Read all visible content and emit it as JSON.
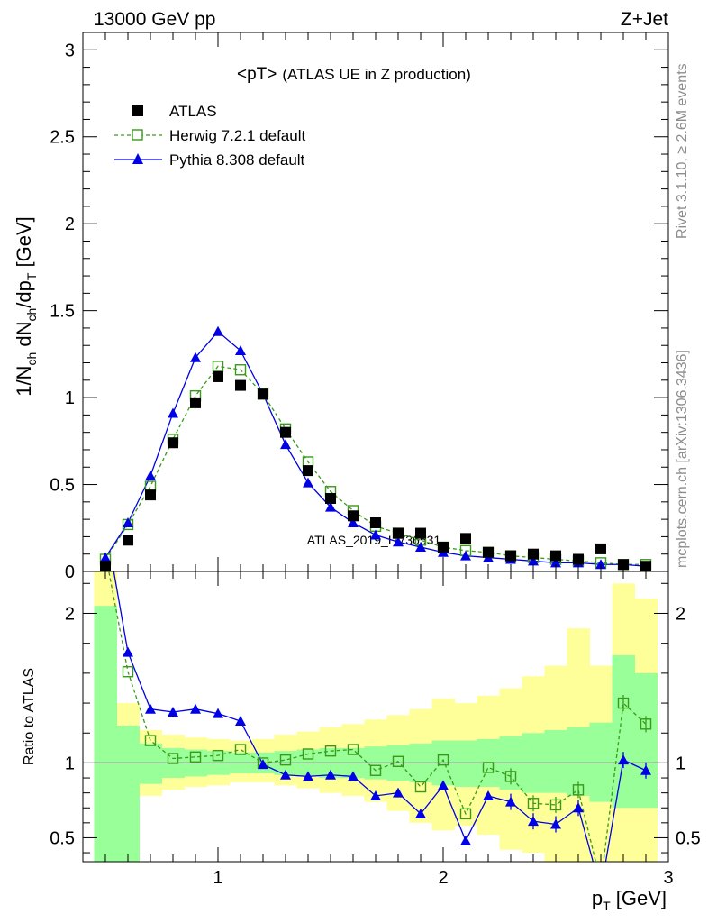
{
  "header": {
    "left": "13000 GeV pp",
    "right": "Z+Jet"
  },
  "side_labels": {
    "rivet": "Rivet 3.1.10, ≥ 2.6M events",
    "mcplots": "mcplots.cern.ch [arXiv:1306.3436]"
  },
  "watermark": "ATLAS_2019_I1736531",
  "chart_data": [
    {
      "type": "scatter",
      "panel": "main",
      "title": "<pT> (ATLAS UE in Z production)",
      "title_main": "<pT>",
      "title_sub": "(ATLAS UE in Z production)",
      "ylabel": "1/N_ch dN_ch/dp_T [GeV]",
      "ylim": [
        0,
        3.1
      ],
      "xlim": [
        0.4,
        3.0
      ],
      "yticks": [
        "0",
        "0.5",
        "1",
        "1.5",
        "2",
        "2.5",
        "3"
      ],
      "legend_placement": "top-left",
      "x": [
        0.5,
        0.6,
        0.7,
        0.8,
        0.9,
        1.0,
        1.1,
        1.2,
        1.3,
        1.4,
        1.5,
        1.6,
        1.7,
        1.8,
        1.9,
        2.0,
        2.1,
        2.2,
        2.3,
        2.4,
        2.5,
        2.6,
        2.7,
        2.8,
        2.9
      ],
      "series": [
        {
          "name": "ATLAS",
          "style": "black filled squares",
          "color": "#000000",
          "values": [
            0.03,
            0.18,
            0.44,
            0.74,
            0.97,
            1.12,
            1.07,
            1.02,
            0.8,
            0.58,
            0.42,
            0.32,
            0.28,
            0.22,
            0.22,
            0.14,
            0.19,
            0.11,
            0.09,
            0.1,
            0.09,
            0.07,
            0.13,
            0.04,
            0.03
          ]
        },
        {
          "name": "Herwig 7.2.1 default",
          "style": "green dashed open squares",
          "color": "#3a9a1a",
          "values": [
            0.07,
            0.27,
            0.49,
            0.76,
            1.01,
            1.18,
            1.16,
            1.02,
            0.82,
            0.63,
            0.46,
            0.35,
            0.26,
            0.22,
            0.18,
            0.14,
            0.12,
            0.11,
            0.09,
            0.08,
            0.07,
            0.06,
            0.05,
            0.04,
            0.04
          ]
        },
        {
          "name": "Pythia 8.308 default",
          "style": "blue solid triangles",
          "color": "#0000e6",
          "values": [
            0.08,
            0.28,
            0.55,
            0.91,
            1.23,
            1.38,
            1.27,
            1.02,
            0.73,
            0.51,
            0.37,
            0.28,
            0.21,
            0.17,
            0.14,
            0.11,
            0.09,
            0.08,
            0.07,
            0.06,
            0.05,
            0.05,
            0.04,
            0.04,
            0.03
          ]
        }
      ]
    },
    {
      "type": "line",
      "panel": "ratio",
      "ylabel": "Ratio to ATLAS",
      "xlabel": "p_T [GeV]",
      "ylim": [
        0.34,
        2.28
      ],
      "xlim": [
        0.4,
        3.0
      ],
      "yticks": [
        "0.5",
        "1",
        "2"
      ],
      "xticks": [
        "1",
        "2",
        "3"
      ],
      "reference_line": 1,
      "bin_edges": [
        0.45,
        0.55,
        0.65,
        0.75,
        0.85,
        0.95,
        1.05,
        1.15,
        1.25,
        1.35,
        1.45,
        1.55,
        1.65,
        1.75,
        1.85,
        1.95,
        2.05,
        2.15,
        2.25,
        2.35,
        2.45,
        2.55,
        2.65,
        2.75,
        2.85,
        2.95
      ],
      "bands": {
        "green_1sigma": {
          "color": "#99ff99",
          "lo": [
            0.0,
            0.0,
            0.86,
            0.9,
            0.91,
            0.92,
            0.93,
            0.93,
            0.92,
            0.91,
            0.9,
            0.9,
            0.89,
            0.88,
            0.87,
            0.85,
            0.84,
            0.84,
            0.82,
            0.8,
            0.8,
            0.78,
            0.74,
            0.7,
            0.7
          ],
          "hi": [
            2.05,
            1.25,
            1.13,
            1.1,
            1.09,
            1.08,
            1.07,
            1.07,
            1.08,
            1.09,
            1.1,
            1.1,
            1.11,
            1.12,
            1.13,
            1.15,
            1.15,
            1.16,
            1.18,
            1.2,
            1.22,
            1.24,
            1.27,
            1.72,
            1.6
          ]
        },
        "yellow_2sigma": {
          "color": "#ffff99",
          "lo": [
            0.0,
            0.6,
            0.78,
            0.82,
            0.84,
            0.85,
            0.87,
            0.87,
            0.85,
            0.83,
            0.8,
            0.78,
            0.74,
            0.68,
            0.6,
            0.55,
            0.58,
            0.52,
            0.42,
            0.4,
            0.3,
            0.3,
            0.3,
            0.0,
            0.0
          ],
          "hi": [
            2.3,
            1.4,
            1.22,
            1.19,
            1.17,
            1.16,
            1.15,
            1.16,
            1.19,
            1.21,
            1.24,
            1.26,
            1.29,
            1.32,
            1.36,
            1.43,
            1.4,
            1.45,
            1.5,
            1.58,
            1.65,
            1.9,
            1.65,
            2.2,
            2.1
          ]
        }
      },
      "series": [
        {
          "name": "Herwig 7.2.1 default",
          "color": "#3a9a1a",
          "values": [
            2.4,
            1.61,
            1.15,
            1.03,
            1.04,
            1.05,
            1.09,
            1.0,
            1.02,
            1.06,
            1.08,
            1.09,
            0.95,
            1.01,
            0.84,
            1.02,
            0.66,
            0.97,
            0.91,
            0.73,
            0.72,
            0.82,
            0.2,
            1.4,
            1.26
          ]
        },
        {
          "name": "Pythia 8.308 default",
          "color": "#0000e6",
          "values": [
            2.6,
            1.74,
            1.36,
            1.34,
            1.36,
            1.33,
            1.28,
            0.99,
            0.92,
            0.91,
            0.92,
            0.91,
            0.78,
            0.8,
            0.66,
            0.85,
            0.48,
            0.78,
            0.74,
            0.61,
            0.59,
            0.7,
            0.15,
            1.02,
            0.95
          ]
        }
      ]
    }
  ]
}
